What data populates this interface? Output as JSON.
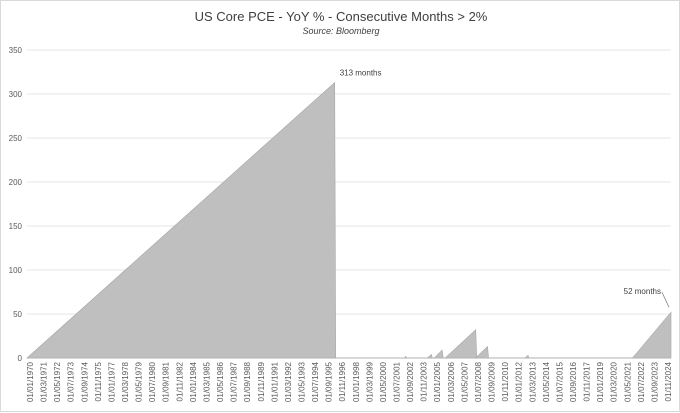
{
  "chart_data": {
    "type": "area",
    "title": "US Core PCE - YoY % - Consecutive Months > 2%",
    "subtitle": "Source: Bloomberg",
    "xlabel": "",
    "ylabel": "",
    "ylim": [
      0,
      350
    ],
    "y_ticks": [
      0,
      50,
      100,
      150,
      200,
      250,
      300,
      350
    ],
    "grid": true,
    "legend": "none",
    "area_color": "#bfbfbf",
    "x_range": [
      "01/01/1970",
      "01/06/2024"
    ],
    "x_tick_labels": [
      "01/01/1970",
      "01/03/1971",
      "01/05/1972",
      "01/07/1973",
      "01/09/1974",
      "01/11/1975",
      "01/01/1977",
      "01/03/1978",
      "01/05/1979",
      "01/07/1980",
      "01/09/1981",
      "01/11/1982",
      "01/01/1984",
      "01/03/1985",
      "01/05/1986",
      "01/07/1987",
      "01/09/1988",
      "01/11/1989",
      "01/01/1991",
      "01/03/1992",
      "01/05/1993",
      "01/07/1994",
      "01/09/1995",
      "01/11/1996",
      "01/01/1998",
      "01/03/1999",
      "01/05/2000",
      "01/07/2001",
      "01/09/2002",
      "01/11/2003",
      "01/01/2005",
      "01/03/2006",
      "01/05/2007",
      "01/07/2008",
      "01/09/2009",
      "01/11/2010",
      "01/01/2012",
      "01/03/2013",
      "01/05/2014",
      "01/07/2015",
      "01/09/2016",
      "01/11/2017",
      "01/01/2019",
      "01/03/2020",
      "01/05/2021",
      "01/07/2022",
      "01/09/2023",
      "01/11/2024"
    ],
    "series": [
      {
        "points": [
          {
            "x": "01/01/1970",
            "y": 0
          },
          {
            "x": "01/01/1996",
            "y": 313
          },
          {
            "x": "01/02/1996",
            "y": 0
          },
          {
            "x": "01/12/2001",
            "y": 0
          },
          {
            "x": "01/01/2002",
            "y": 2
          },
          {
            "x": "01/02/2002",
            "y": 0
          },
          {
            "x": "01/11/2003",
            "y": 0
          },
          {
            "x": "01/03/2004",
            "y": 4
          },
          {
            "x": "01/04/2004",
            "y": 0
          },
          {
            "x": "01/06/2004",
            "y": 0
          },
          {
            "x": "01/02/2005",
            "y": 9
          },
          {
            "x": "01/03/2005",
            "y": 0
          },
          {
            "x": "01/05/2005",
            "y": 0
          },
          {
            "x": "01/12/2007",
            "y": 32
          },
          {
            "x": "01/01/2008",
            "y": 0
          },
          {
            "x": "01/12/2007",
            "y": 0
          },
          {
            "x": "01/12/2008",
            "y": 13
          },
          {
            "x": "01/01/2009",
            "y": 0
          },
          {
            "x": "01/02/2012",
            "y": 0
          },
          {
            "x": "01/05/2012",
            "y": 3
          },
          {
            "x": "01/06/2012",
            "y": 0
          },
          {
            "x": "01/03/2021",
            "y": 0
          },
          {
            "x": "01/06/2024",
            "y": 52
          }
        ]
      }
    ],
    "annotations": [
      {
        "text": "313 months",
        "x": "01/01/1996",
        "y": 313
      },
      {
        "text": "52 months",
        "x": "01/06/2024",
        "y": 52
      }
    ]
  }
}
